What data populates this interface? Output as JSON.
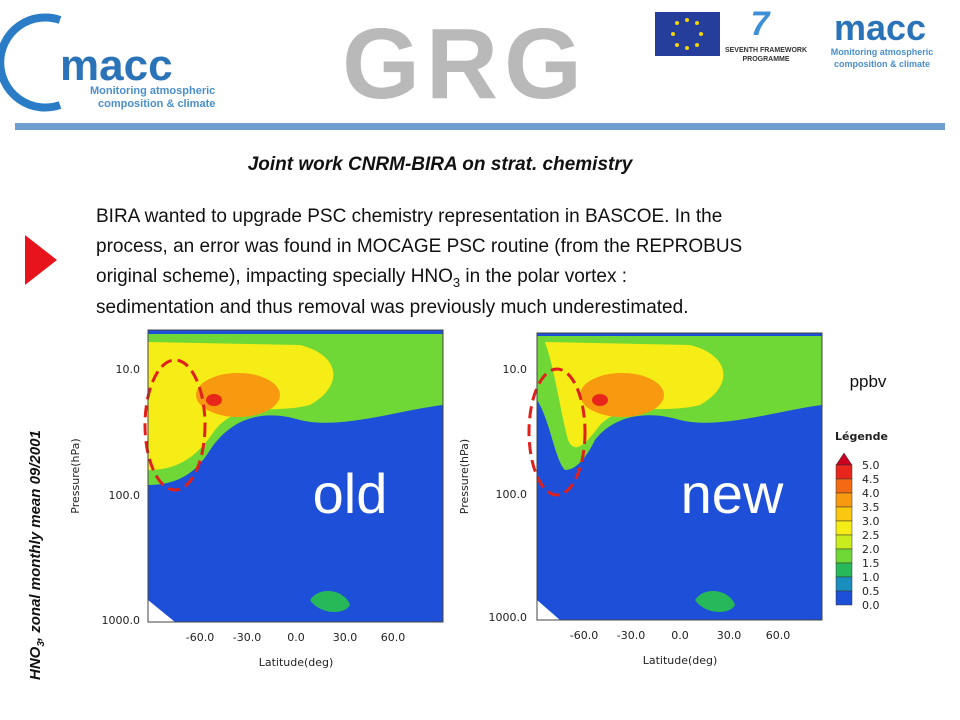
{
  "header": {
    "logo_left": {
      "name": "macc",
      "tagline": [
        "Monitoring atmospheric",
        "composition & climate"
      ]
    },
    "center_logo": "GRG",
    "fp7": [
      "SEVENTH FRAMEWORK",
      "PROGRAMME"
    ],
    "logo_right": {
      "name": "macc",
      "tagline": [
        "Monitoring atmospheric",
        "composition & climate"
      ]
    }
  },
  "title": "Joint work CNRM-BIRA on strat. chemistry",
  "body": {
    "line1": "BIRA wanted to upgrade PSC chemistry representation in BASCOE. In the",
    "line2": "process, an error was found in MOCAGE PSC routine (from the REPROBUS",
    "line3": {
      "text": "original scheme), impacting specially HNO",
      "sub": "3",
      "tail": " in the polar vortex :"
    },
    "line4": "sedimentation and thus removal was previously much underestimated."
  },
  "side_label": {
    "text": "HNO",
    "sub": "3",
    "tail": ", zonal monthly mean 09/2001"
  },
  "plots": [
    {
      "label": "old",
      "y_axis_label": "Pressure(hPa)",
      "x_axis_label": "Latitude(deg)",
      "yticks": [
        "10.0",
        "100.0",
        "1000.0"
      ],
      "xticks": [
        "-60.0",
        "-30.0",
        "0.0",
        "30.0",
        "60.0"
      ]
    },
    {
      "label": "new",
      "y_axis_label": "Pressure(hPa)",
      "x_axis_label": "Latitude(deg)",
      "yticks": [
        "10.0",
        "100.0",
        "1000.0"
      ],
      "xticks": [
        "-60.0",
        "-30.0",
        "0.0",
        "30.0",
        "60.0"
      ]
    }
  ],
  "unit": "ppbv",
  "legend": {
    "title": "Légende",
    "levels": [
      "5.0",
      "4.5",
      "4.0",
      "3.5",
      "3.0",
      "2.5",
      "2.0",
      "1.5",
      "1.0",
      "0.5",
      "0.0"
    ],
    "colors": [
      "#c8001e",
      "#e8261c",
      "#f46a12",
      "#f89a10",
      "#f9c80f",
      "#f6ec16",
      "#c9ec1d",
      "#6fd836",
      "#27b85a",
      "#1a8fbf",
      "#1e4fd8"
    ]
  }
}
